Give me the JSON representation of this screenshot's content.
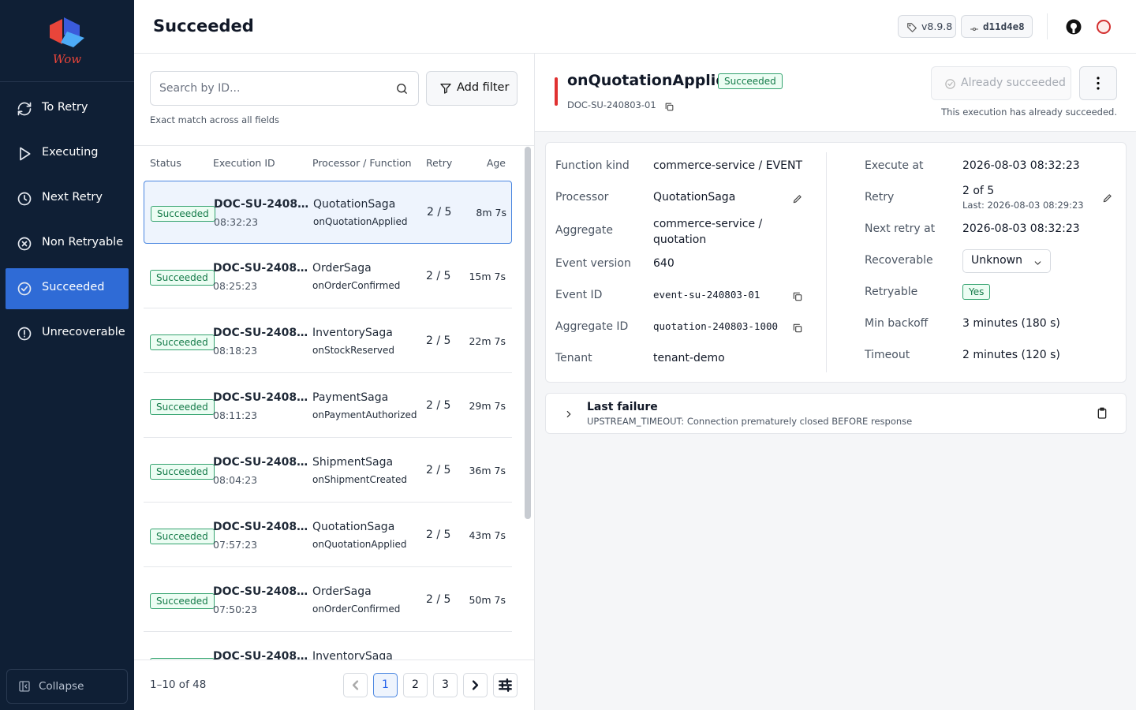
{
  "sidebar": {
    "brand": "Wow",
    "nav": [
      "To Retry",
      "Executing",
      "Next Retry",
      "Non Retryable",
      "Succeeded",
      "Unrecoverable"
    ],
    "active": 4,
    "collapse": "Collapse"
  },
  "header": {
    "title": "Succeeded",
    "version": "v8.9.8",
    "commit": "d11d4e8"
  },
  "search": {
    "placeholder": "Search by ID...",
    "hint": "Exact match across all fields",
    "filter": "Add filter"
  },
  "table": {
    "columns": [
      "Status",
      "Execution ID",
      "Processor / Function",
      "Retry",
      "Age"
    ],
    "selected": 0,
    "rows": [
      {
        "status": "Succeeded",
        "id": "DOC-SU-2408…",
        "time": "08:32:23",
        "processor": "QuotationSaga",
        "function": "onQuotationApplied",
        "retry": "2 / 5",
        "age": "8m 7s"
      },
      {
        "status": "Succeeded",
        "id": "DOC-SU-2408…",
        "time": "08:25:23",
        "processor": "OrderSaga",
        "function": "onOrderConfirmed",
        "retry": "2 / 5",
        "age": "15m 7s"
      },
      {
        "status": "Succeeded",
        "id": "DOC-SU-2408…",
        "time": "08:18:23",
        "processor": "InventorySaga",
        "function": "onStockReserved",
        "retry": "2 / 5",
        "age": "22m 7s"
      },
      {
        "status": "Succeeded",
        "id": "DOC-SU-2408…",
        "time": "08:11:23",
        "processor": "PaymentSaga",
        "function": "onPaymentAuthorized",
        "retry": "2 / 5",
        "age": "29m 7s"
      },
      {
        "status": "Succeeded",
        "id": "DOC-SU-2408…",
        "time": "08:04:23",
        "processor": "ShipmentSaga",
        "function": "onShipmentCreated",
        "retry": "2 / 5",
        "age": "36m 7s"
      },
      {
        "status": "Succeeded",
        "id": "DOC-SU-2408…",
        "time": "07:57:23",
        "processor": "QuotationSaga",
        "function": "onQuotationApplied",
        "retry": "2 / 5",
        "age": "43m 7s"
      },
      {
        "status": "Succeeded",
        "id": "DOC-SU-2408…",
        "time": "07:50:23",
        "processor": "OrderSaga",
        "function": "onOrderConfirmed",
        "retry": "2 / 5",
        "age": "50m 7s"
      },
      {
        "status": "Succeeded",
        "id": "DOC-SU-2408…",
        "processor": "InventorySaga"
      }
    ]
  },
  "pagination": {
    "range": "1–10 of 48",
    "pages": [
      1,
      2,
      3
    ],
    "current": 0
  },
  "detail": {
    "title": "onQuotationApplied",
    "status": "Succeeded",
    "id": "DOC-SU-240803-01",
    "action": "Already succeeded",
    "note": "This execution has already succeeded.",
    "left": [
      {
        "label": "Function kind",
        "value": "commerce-service / EVENT"
      },
      {
        "label": "Processor",
        "value": "QuotationSaga"
      },
      {
        "label": "Aggregate",
        "value": "commerce-service / quotation"
      },
      {
        "label": "Event version",
        "value": 640
      },
      {
        "label": "Event ID",
        "value": "event-su-240803-01"
      },
      {
        "label": "Aggregate ID",
        "value": "quotation-240803-1000"
      },
      {
        "label": "Tenant",
        "value": "tenant-demo"
      }
    ],
    "right": [
      {
        "label": "Execute at",
        "value": "2026-08-03 08:32:23"
      },
      {
        "label": "Retry",
        "value": "2 of 5",
        "sub": "Last: 2026-08-03 08:29:23"
      },
      {
        "label": "Next retry at",
        "value": "2026-08-03 08:32:23"
      },
      {
        "label": "Recoverable",
        "value": "Unknown"
      },
      {
        "label": "Retryable",
        "value": "Yes"
      },
      {
        "label": "Min backoff",
        "value": "3 minutes (180 s)"
      },
      {
        "label": "Timeout",
        "value": "2 minutes (120 s)"
      }
    ],
    "failure": {
      "title": "Last failure",
      "message": "UPSTREAM_TIMEOUT: Connection prematurely closed BEFORE response"
    }
  }
}
